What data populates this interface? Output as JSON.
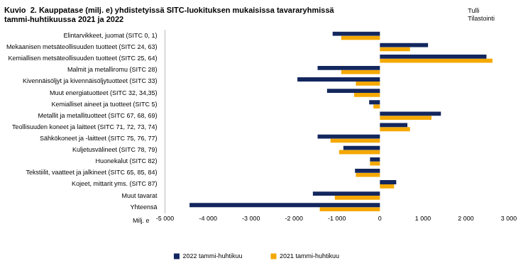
{
  "chart_data": {
    "type": "bar",
    "orientation": "horizontal",
    "title": [
      "Kuvio  2. Kauppatase (milj. e) yhdistetyissä SITC-luokituksen mukaisissa tavararyhmissä",
      "tammi-huhtikuussa 2021 ja 2022"
    ],
    "source": [
      "Tulli",
      "Tilastointi"
    ],
    "x_label": "Milj. e",
    "categories": [
      "Elintarvikkeet, juomat (SITC 0, 1)",
      "Mekaanisen metsäteollisuuden tuotteet (SITC 24, 63)",
      "Kemiallisen metsäteollisuuden tuotteet (SITC 25, 64)",
      "Malmit ja metalliromu (SITC 28)",
      "Kivennäisöljyt ja kivennäisöljytuotteet (SITC 33)",
      "Muut energiatuotteet (SITC 32, 34,35)",
      "Kemialliset aineet ja tuotteet (SITC 5)",
      "Metallit ja metallituotteet (SITC 67, 68, 69)",
      "Teollisuuden koneet ja laitteet (SITC 71, 72, 73, 74)",
      "Sähkökoneet ja -laitteet (SITC 75, 76, 77)",
      "Kuljetusvälineet (SITC 78, 79)",
      "Huonekalut (SITC 82)",
      "Tekstiilit, vaatteet ja jalkineet (SITC 65, 85, 84)",
      "Kojeet, mittarit yms. (SITC 87)",
      "Muut tavarat",
      "Yhteensä"
    ],
    "series": [
      {
        "name": "2022 tammi-huhtikuu",
        "color": "#13275e",
        "values": [
          -1100,
          1120,
          2480,
          -1450,
          -1920,
          -1230,
          -250,
          1420,
          640,
          -1450,
          -850,
          -230,
          -580,
          380,
          -1560,
          -4430
        ]
      },
      {
        "name": "2021 tammi-huhtikuu",
        "color": "#f5a800",
        "values": [
          -900,
          700,
          2620,
          -900,
          -560,
          -600,
          -150,
          1200,
          700,
          -1150,
          -950,
          -230,
          -560,
          330,
          -1050,
          -1400
        ]
      }
    ],
    "xlim": [
      -5000,
      3000
    ],
    "xticks": [
      {
        "value": -5000,
        "label": "-5 000"
      },
      {
        "value": -4000,
        "label": "-4 000"
      },
      {
        "value": -3000,
        "label": "-3 000"
      },
      {
        "value": -2000,
        "label": "-2 000"
      },
      {
        "value": -1000,
        "label": "-1 000"
      },
      0,
      {
        "value": 1000,
        "label": "1 000"
      },
      {
        "value": 2000,
        "label": "2 000"
      },
      {
        "value": 3000,
        "label": "3 000"
      }
    ],
    "grid": false,
    "legend": "bottom"
  }
}
